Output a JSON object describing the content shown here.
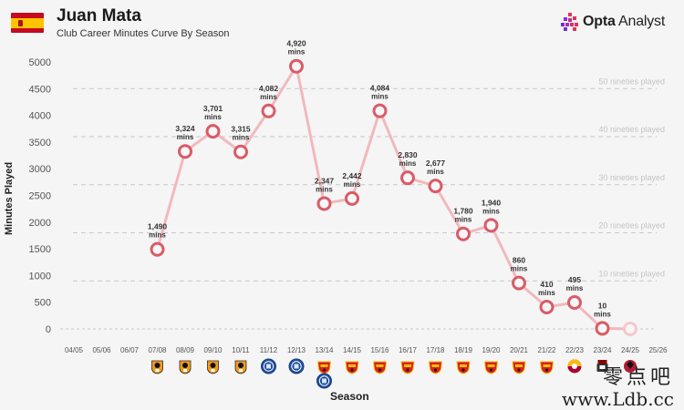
{
  "header": {
    "title": "Juan Mata",
    "subtitle": "Club Career Minutes Curve By Season",
    "brand_bold": "Opta",
    "brand_rest": " Analyst",
    "flag": "spain-flag"
  },
  "watermark": {
    "line1": "零点吧",
    "line2": "www.Ldb.cc"
  },
  "chart_data": {
    "type": "line",
    "title": "Club Career Minutes Curve By Season",
    "xlabel": "Season",
    "ylabel": "Minutes Played",
    "ylim": [
      0,
      5000
    ],
    "yticks": [
      0,
      500,
      1000,
      1500,
      2000,
      2500,
      3000,
      3500,
      4000,
      4500,
      5000
    ],
    "categories": [
      "04/05",
      "05/06",
      "06/07",
      "07/08",
      "08/09",
      "09/10",
      "10/11",
      "11/12",
      "12/13",
      "13/14",
      "14/15",
      "15/16",
      "16/17",
      "17/18",
      "18/19",
      "19/20",
      "20/21",
      "21/22",
      "22/23",
      "23/24",
      "24/25",
      "25/26"
    ],
    "series": [
      {
        "values": [
          null,
          null,
          null,
          1490,
          3324,
          3701,
          3315,
          4082,
          4920,
          2347,
          2442,
          4084,
          2830,
          2677,
          1780,
          1940,
          860,
          410,
          495,
          10,
          0,
          null
        ],
        "labels": [
          "",
          "",
          "",
          "1,490",
          "3,324",
          "3,701",
          "3,315",
          "4,082",
          "4,920",
          "2,347",
          "2,442",
          "4,084",
          "2,830",
          "2,677",
          "1,780",
          "1,940",
          "860",
          "410",
          "495",
          "10",
          "",
          ""
        ],
        "label_unit": "mins",
        "faded_indices": [
          20
        ]
      }
    ],
    "reference_lines": [
      {
        "value": 900,
        "label": "10 nineties played"
      },
      {
        "value": 1800,
        "label": "20 nineties played"
      },
      {
        "value": 2700,
        "label": "30 nineties played"
      },
      {
        "value": 3600,
        "label": "40 nineties played"
      },
      {
        "value": 4500,
        "label": "50 nineties played"
      }
    ],
    "badges": [
      {
        "index": 3,
        "club": "valencia"
      },
      {
        "index": 4,
        "club": "valencia"
      },
      {
        "index": 5,
        "club": "valencia"
      },
      {
        "index": 6,
        "club": "valencia"
      },
      {
        "index": 7,
        "club": "chelsea"
      },
      {
        "index": 8,
        "club": "chelsea"
      },
      {
        "index": 9,
        "club": "manchester-united"
      },
      {
        "index": 9,
        "club": "chelsea"
      },
      {
        "index": 10,
        "club": "manchester-united"
      },
      {
        "index": 11,
        "club": "manchester-united"
      },
      {
        "index": 12,
        "club": "manchester-united"
      },
      {
        "index": 13,
        "club": "manchester-united"
      },
      {
        "index": 14,
        "club": "manchester-united"
      },
      {
        "index": 15,
        "club": "manchester-united"
      },
      {
        "index": 16,
        "club": "manchester-united"
      },
      {
        "index": 17,
        "club": "manchester-united"
      },
      {
        "index": 18,
        "club": "galatasaray"
      },
      {
        "index": 19,
        "club": "vissel-kobe"
      },
      {
        "index": 20,
        "club": "western-sydney"
      }
    ],
    "colors": {
      "line": "#f1b9bd",
      "marker_stroke": "#d95c68",
      "marker_fill": "#f7f7f7",
      "faded_marker": "#f5c8cc",
      "grid": "#c8c8c8",
      "reference_text": "#c4c4c4",
      "label_text": "#333333",
      "tick_text": "#555555"
    },
    "grid": true
  }
}
